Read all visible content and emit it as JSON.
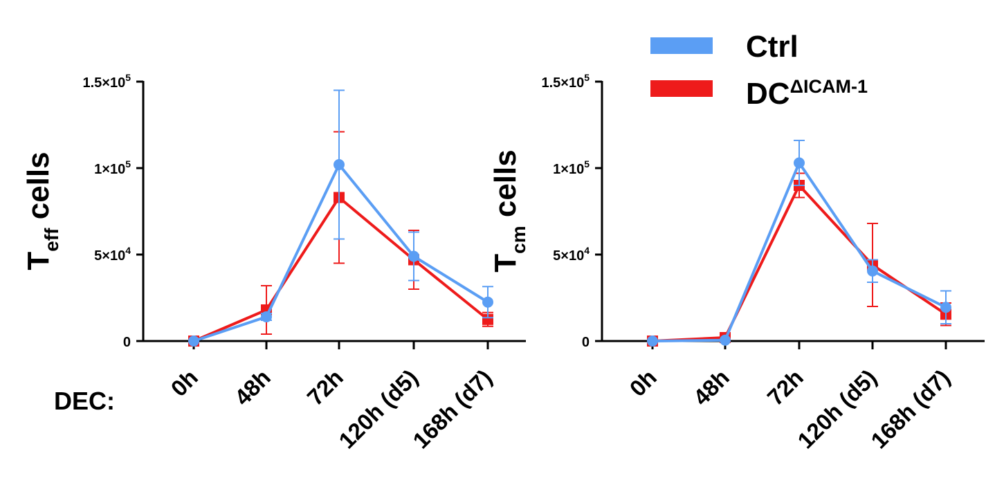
{
  "colors": {
    "ctrl": "#5B9EF4",
    "dc": "#EE1B1B",
    "axis": "#000000"
  },
  "legend": {
    "items": [
      {
        "label": "Ctrl",
        "color": "#5B9EF4"
      },
      {
        "label": "DC",
        "superscript": "ΔICAM-1",
        "color": "#EE1B1B"
      }
    ]
  },
  "dec_label": "DEC:",
  "chart_data": [
    {
      "type": "line",
      "ylabel": {
        "main": "T",
        "sub": "eff",
        "rest": " cells"
      },
      "categories": [
        "0h",
        "48h",
        "72h",
        "120h (d5)",
        "168h (d7)"
      ],
      "yticks": [
        {
          "value": 0,
          "base": "0",
          "exp": ""
        },
        {
          "value": 50000,
          "base": "5×10",
          "exp": "4"
        },
        {
          "value": 100000,
          "base": "1×10",
          "exp": "5"
        },
        {
          "value": 150000,
          "base": "1.5×10",
          "exp": "5"
        }
      ],
      "ylim": [
        0,
        150000
      ],
      "series": [
        {
          "key": "dc",
          "marker": "square",
          "values": [
            0,
            18000,
            83000,
            47000,
            12500
          ],
          "errors": [
            0,
            14000,
            38000,
            17000,
            4000
          ]
        },
        {
          "key": "ctrl",
          "marker": "circle",
          "values": [
            0,
            14000,
            102000,
            49000,
            22500
          ],
          "errors": [
            0,
            2000,
            43000,
            14000,
            9000
          ]
        }
      ]
    },
    {
      "type": "line",
      "ylabel": {
        "main": "T",
        "sub": "cm",
        "rest": " cells"
      },
      "categories": [
        "0h",
        "48h",
        "72h",
        "120h (d5)",
        "168h (d7)"
      ],
      "yticks": [
        {
          "value": 0,
          "base": "0",
          "exp": ""
        },
        {
          "value": 50000,
          "base": "5×10",
          "exp": "4"
        },
        {
          "value": 100000,
          "base": "1×10",
          "exp": "5"
        },
        {
          "value": 150000,
          "base": "1.5×10",
          "exp": "5"
        }
      ],
      "ylim": [
        0,
        150000
      ],
      "series": [
        {
          "key": "dc",
          "marker": "square",
          "values": [
            0,
            2000,
            90000,
            44000,
            15500
          ],
          "errors": [
            0,
            0,
            7000,
            24000,
            6500
          ]
        },
        {
          "key": "ctrl",
          "marker": "circle",
          "values": [
            0,
            500,
            103000,
            40500,
            19500
          ],
          "errors": [
            0,
            0,
            13000,
            6500,
            9500
          ]
        }
      ]
    }
  ]
}
